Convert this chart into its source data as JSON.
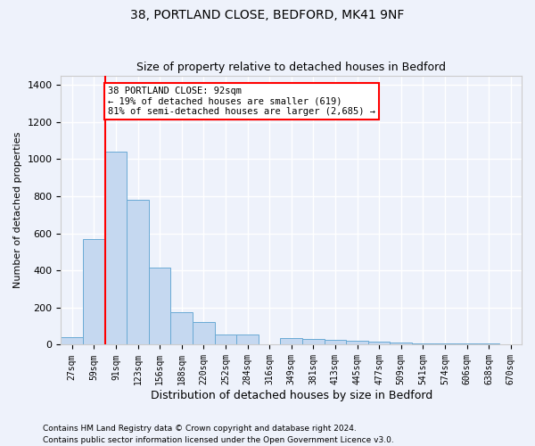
{
  "title1": "38, PORTLAND CLOSE, BEDFORD, MK41 9NF",
  "title2": "Size of property relative to detached houses in Bedford",
  "xlabel": "Distribution of detached houses by size in Bedford",
  "ylabel": "Number of detached properties",
  "footnote1": "Contains HM Land Registry data © Crown copyright and database right 2024.",
  "footnote2": "Contains public sector information licensed under the Open Government Licence v3.0.",
  "categories": [
    "27sqm",
    "59sqm",
    "91sqm",
    "123sqm",
    "156sqm",
    "188sqm",
    "220sqm",
    "252sqm",
    "284sqm",
    "316sqm",
    "349sqm",
    "381sqm",
    "413sqm",
    "445sqm",
    "477sqm",
    "509sqm",
    "541sqm",
    "574sqm",
    "606sqm",
    "638sqm",
    "670sqm"
  ],
  "values": [
    40,
    570,
    1040,
    780,
    415,
    175,
    120,
    55,
    55,
    0,
    35,
    30,
    25,
    20,
    15,
    10,
    5,
    5,
    5,
    5,
    2
  ],
  "bar_color": "#c5d8f0",
  "bar_edge_color": "#6aaad4",
  "red_line_bar_index": 2,
  "annotation_line1": "38 PORTLAND CLOSE: 92sqm",
  "annotation_line2": "← 19% of detached houses are smaller (619)",
  "annotation_line3": "81% of semi-detached houses are larger (2,685) →",
  "annotation_box_color": "white",
  "annotation_box_edge_color": "red",
  "ylim": [
    0,
    1450
  ],
  "yticks": [
    0,
    200,
    400,
    600,
    800,
    1000,
    1200,
    1400
  ],
  "background_color": "#eef2fb",
  "grid_color": "white",
  "bar_width": 1.0
}
